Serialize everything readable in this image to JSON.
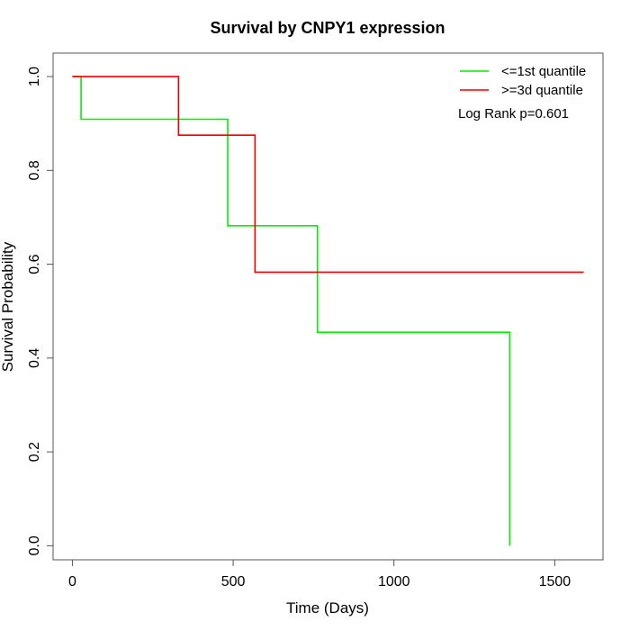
{
  "chart_data": {
    "type": "line",
    "subtype": "kaplan-meier-step",
    "title": "Survival by CNPY1 expression",
    "xlabel": "Time (Days)",
    "ylabel": "Survival Probability",
    "xlim": [
      -60,
      1650
    ],
    "ylim": [
      -0.03,
      1.05
    ],
    "xticks": [
      0,
      500,
      1000,
      1500
    ],
    "yticks": [
      0.0,
      0.2,
      0.4,
      0.6,
      0.8,
      1.0
    ],
    "xtick_labels": [
      "0",
      "500",
      "1000",
      "1500"
    ],
    "ytick_labels": [
      "0.0",
      "0.2",
      "0.4",
      "0.6",
      "0.8",
      "1.0"
    ],
    "grid": false,
    "legend_position": "top-right",
    "annotation": "Log Rank p=0.601",
    "series": [
      {
        "name": "<=1st quantile",
        "color": "#00ee00",
        "steps": [
          [
            0,
            1.0
          ],
          [
            27,
            0.909
          ],
          [
            483,
            0.682
          ],
          [
            762,
            0.455
          ],
          [
            1360,
            0.0
          ]
        ],
        "end_x": 1360
      },
      {
        "name": ">=3d quantile",
        "color": "#ee0000",
        "steps": [
          [
            0,
            1.0
          ],
          [
            330,
            0.875
          ],
          [
            568,
            0.583
          ]
        ],
        "end_x": 1590
      }
    ]
  }
}
